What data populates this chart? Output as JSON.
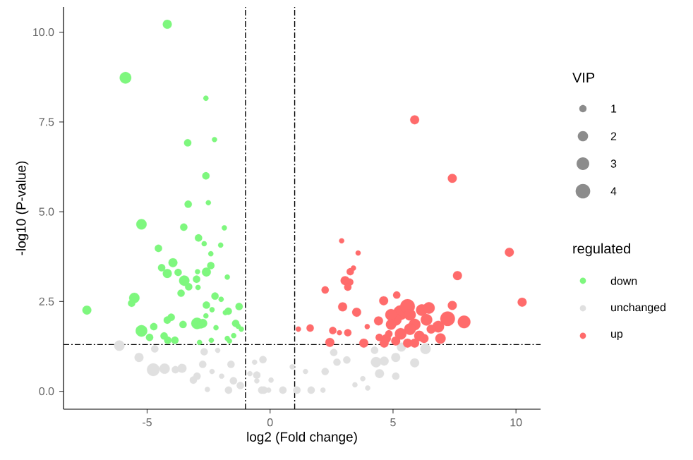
{
  "chart_data": {
    "type": "bubble",
    "xlabel": "log2 (Fold change)",
    "ylabel": "-log10 (P-value)",
    "legend_title": "regulated",
    "annotations": [
      "VIP"
    ],
    "size_legend": [
      1,
      2,
      3,
      4
    ],
    "legend": "right",
    "marker": "circle",
    "xlim": [
      -8.4,
      11.0
    ],
    "ylim": [
      -0.5,
      10.7
    ],
    "xticks": [
      -5,
      0,
      5,
      10
    ],
    "yticks": [
      {
        "value": 0,
        "label": "0.0"
      },
      {
        "value": 2.5,
        "label": "2.5"
      },
      {
        "value": 5,
        "label": "5.0"
      },
      {
        "value": 7.5,
        "label": "7.5"
      },
      {
        "value": 10,
        "label": "10.0"
      }
    ],
    "ref_lines": [
      {
        "axis": "x",
        "value": -1,
        "line_style": "dashdot"
      },
      {
        "axis": "x",
        "value": 1,
        "line_style": "dashdot"
      },
      {
        "axis": "y",
        "value": 1.3,
        "line_style": "dashdot"
      }
    ],
    "series": [
      {
        "name": "down",
        "color": "#7ef77e",
        "x": [
          -4.18,
          -5.88,
          -2.61,
          -3.35,
          -2.26,
          -2.61,
          -3.33,
          -2.51,
          -5.23,
          -3.51,
          -1.86,
          -2.91,
          -2.68,
          -2.01,
          -4.54,
          -2.41,
          -3.95,
          -4.41,
          -4.18,
          -3.74,
          -2.59,
          -2.41,
          -2.95,
          -1.74,
          -3.49,
          -2.99,
          -3.31,
          -2.93,
          -3.62,
          -5.52,
          -5.63,
          -2.24,
          -1.99,
          -2.59,
          -1.26,
          -7.45,
          -2.36,
          -1.82,
          -1.7,
          -4.02,
          -4.18,
          -2.61,
          -2.97,
          -3.54,
          -2.74,
          -2.82,
          -1.4,
          -4.73,
          -5.23,
          -2.2,
          -1.3,
          -1.17,
          -1.48,
          -4.9,
          -4.31,
          -1.74,
          -4.16,
          -3.87,
          -2.87,
          -2.39,
          -1.65
        ],
        "values": [
          10.22,
          8.73,
          8.16,
          6.92,
          7.01,
          6.0,
          5.21,
          5.25,
          4.65,
          4.57,
          4.55,
          4.27,
          4.11,
          4.07,
          3.98,
          3.83,
          3.58,
          3.44,
          3.28,
          3.31,
          3.32,
          3.5,
          3.33,
          3.18,
          3.08,
          3.12,
          2.91,
          2.89,
          2.73,
          2.6,
          2.45,
          2.65,
          2.56,
          2.4,
          2.36,
          2.26,
          2.27,
          2.19,
          2.23,
          2.06,
          1.98,
          2.1,
          1.89,
          1.86,
          1.89,
          1.85,
          1.89,
          1.8,
          1.68,
          1.77,
          1.81,
          1.73,
          1.55,
          1.5,
          1.54,
          1.47,
          1.42,
          1.42,
          1.36,
          1.42,
          1.4
        ],
        "sizes": [
          1.5,
          2.5,
          0.5,
          1,
          0.5,
          1,
          1,
          0.5,
          2,
          1,
          0.5,
          1,
          0.5,
          0.5,
          1,
          0.5,
          1.5,
          1,
          1.5,
          1,
          1.5,
          1,
          0.5,
          0.5,
          2,
          1,
          1,
          0.5,
          1,
          2,
          1,
          1,
          0.5,
          1,
          1,
          1.5,
          0.5,
          0.5,
          1,
          1,
          1,
          0.5,
          2.5,
          1,
          1.5,
          1,
          1,
          1,
          2.5,
          0.5,
          0.5,
          0.5,
          0.5,
          1,
          1,
          0.5,
          1,
          1,
          0.5,
          0.5,
          0.5
        ]
      },
      {
        "name": "unchanged",
        "color": "#e0e0e0",
        "x": [
          -6.13,
          -5.33,
          -4.75,
          -4.29,
          -4.69,
          -3.85,
          -3.58,
          -3.12,
          -2.97,
          -2.74,
          -2.68,
          -2.13,
          -2.36,
          -1.97,
          -1.59,
          -1.49,
          -1.69,
          -1.21,
          -0.82,
          -0.63,
          -0.34,
          -2.55,
          -0.54,
          -0.06,
          -0.29,
          -0.54,
          0.04,
          0.52,
          1.09,
          1.67,
          2.15,
          1.44,
          2.24,
          2.72,
          3.12,
          2.59,
          3.45,
          3.97,
          4.31,
          4.45,
          4.64,
          5.11,
          5.11,
          5.34,
          5.88,
          6.32,
          4.25,
          3.77,
          -0.25,
          0.9
        ],
        "values": [
          1.27,
          0.94,
          0.6,
          0.63,
          1.18,
          0.6,
          0.64,
          0.31,
          0.42,
          0.75,
          1.1,
          1.14,
          0.55,
          0.42,
          0.75,
          0.29,
          0.03,
          0.16,
          0.49,
          0.81,
          0.03,
          0.05,
          0.29,
          0.03,
          0.88,
          0.45,
          0.31,
          0.03,
          0.03,
          0.03,
          0.03,
          0.55,
          0.55,
          0.81,
          0.87,
          1.08,
          0.18,
          0.09,
          0.81,
          0.49,
          0.84,
          0.94,
          0.42,
          1.23,
          0.79,
          1.18,
          1.14,
          0.35,
          0.03,
          0.68
        ],
        "sizes": [
          2,
          1.5,
          3,
          2,
          1,
          1,
          1.5,
          1,
          1,
          1,
          1,
          0.5,
          0.5,
          0.5,
          1,
          1,
          1,
          1,
          0.5,
          0.5,
          1,
          0.5,
          0.5,
          0.5,
          1,
          1,
          0.5,
          1,
          1,
          1,
          0.5,
          0.5,
          1,
          1,
          1,
          1,
          0.5,
          0.5,
          2,
          1.5,
          1.5,
          1.5,
          1,
          1.5,
          1.5,
          2,
          1,
          0.5,
          1,
          0.5
        ]
      },
      {
        "name": "up",
        "color": "#ff6b6b",
        "x": [
          5.88,
          7.41,
          2.91,
          3.58,
          9.73,
          3.39,
          3.26,
          7.62,
          3.05,
          3.24,
          3.16,
          2.24,
          10.25,
          5.15,
          4.62,
          2.95,
          3.52,
          5.31,
          5.59,
          5.11,
          4.92,
          5.88,
          6.17,
          6.46,
          6.36,
          5.69,
          5.31,
          7.22,
          7.89,
          7.41,
          6.84,
          6.93,
          4.41,
          6.07,
          4.73,
          5.59,
          4.64,
          5.11,
          4.83,
          4.44,
          6.26,
          6.55,
          5.88,
          4.92,
          5.69,
          1.63,
          1.15,
          2.55,
          2.82,
          3.16,
          3.95,
          2.43,
          3.81
        ],
        "values": [
          7.56,
          5.93,
          4.19,
          3.85,
          3.87,
          3.43,
          3.33,
          3.22,
          3.08,
          3.04,
          2.9,
          2.82,
          2.48,
          2.68,
          2.52,
          2.35,
          2.2,
          2.19,
          2.36,
          1.99,
          2.13,
          1.86,
          2.26,
          2.32,
          1.99,
          1.73,
          1.6,
          2.02,
          1.93,
          2.39,
          1.8,
          1.47,
          1.96,
          1.54,
          1.47,
          1.34,
          1.34,
          1.4,
          1.6,
          1.5,
          1.47,
          1.73,
          1.34,
          1.86,
          2.13,
          1.76,
          1.73,
          1.69,
          1.63,
          1.63,
          1.8,
          1.36,
          1.34
        ],
        "sizes": [
          1.5,
          1.5,
          0.5,
          0.5,
          1.5,
          0.5,
          1,
          1.5,
          1.5,
          1,
          1,
          1,
          1.5,
          1,
          1.5,
          1.5,
          1.5,
          4,
          4,
          2.5,
          2.5,
          2.5,
          2.5,
          2.5,
          2.5,
          2.5,
          2.5,
          4,
          3,
          1.5,
          2.5,
          2,
          1.5,
          2,
          1.5,
          1.5,
          1.5,
          1.5,
          1,
          1,
          1.5,
          1.5,
          1.5,
          2,
          2.5,
          1,
          0.5,
          1,
          0.5,
          1,
          0.5,
          1.5,
          1.5
        ]
      }
    ]
  }
}
